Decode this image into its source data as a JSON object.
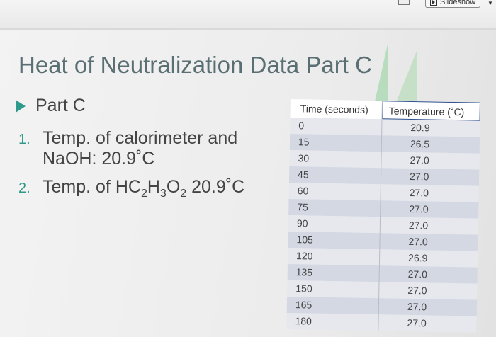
{
  "toolbar": {
    "slideshow_label": "Slideshow"
  },
  "slide": {
    "title": "Heat of Neutralization Data Part C",
    "bullet": "Part C",
    "items": [
      {
        "num": "1.",
        "line1": "Temp. of calorimeter and",
        "line2": "NaOH: 20.9˚C"
      },
      {
        "num": "2.",
        "prefix": "Temp. of HC",
        "s1": "2",
        "h": "H",
        "s2": "3",
        "o": "O",
        "s3": "2",
        "suffix": " 20.9˚C"
      }
    ]
  },
  "table": {
    "headers": [
      "Time (seconds)",
      "Temperature (˚C)"
    ],
    "rows": [
      [
        "0",
        "20.9"
      ],
      [
        "15",
        "26.5"
      ],
      [
        "30",
        "27.0"
      ],
      [
        "45",
        "27.0"
      ],
      [
        "60",
        "27.0"
      ],
      [
        "75",
        "27.0"
      ],
      [
        "90",
        "27.0"
      ],
      [
        "105",
        "27.0"
      ],
      [
        "120",
        "26.9"
      ],
      [
        "135",
        "27.0"
      ],
      [
        "150",
        "27.0"
      ],
      [
        "165",
        "27.0"
      ],
      [
        "180",
        "27.0"
      ]
    ]
  }
}
